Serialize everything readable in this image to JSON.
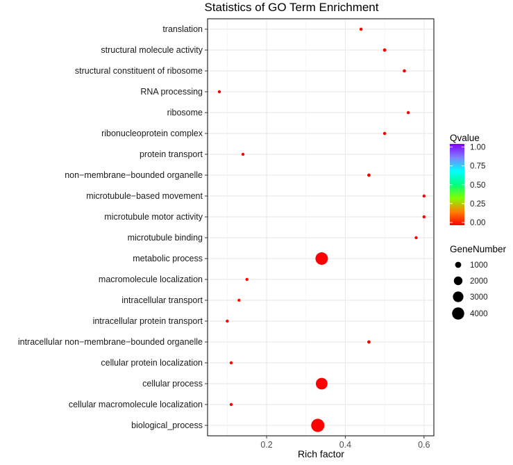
{
  "chart_data": {
    "type": "scatter",
    "title": "Statistics of GO Term Enrichment",
    "xlabel": "Rich factor",
    "ylabel": "",
    "xlim": [
      0.05,
      0.625
    ],
    "xticks": [
      0.2,
      0.4,
      0.6
    ],
    "xtick_labels": [
      "0.2",
      "0.4",
      "0.6"
    ],
    "grid": true,
    "categories": [
      "translation",
      "structural molecule activity",
      "structural constituent of ribosome",
      "RNA processing",
      "ribosome",
      "ribonucleoprotein complex",
      "protein transport",
      "non−membrane−bounded organelle",
      "microtubule−based movement",
      "microtubule motor activity",
      "microtubule binding",
      "metabolic process",
      "macromolecule localization",
      "intracellular transport",
      "intracellular protein transport",
      "intracellular non−membrane−bounded organelle",
      "cellular protein localization",
      "cellular process",
      "cellular macromolecule localization",
      "biological_process"
    ],
    "rich_factor": [
      0.44,
      0.5,
      0.55,
      0.08,
      0.56,
      0.5,
      0.14,
      0.46,
      0.6,
      0.6,
      0.58,
      0.34,
      0.15,
      0.13,
      0.1,
      0.46,
      0.11,
      0.34,
      0.11,
      0.33
    ],
    "gene_number": [
      270,
      300,
      280,
      90,
      260,
      270,
      130,
      300,
      100,
      100,
      130,
      4200,
      140,
      130,
      110,
      300,
      120,
      3700,
      110,
      4700
    ],
    "qvalue": [
      0.0,
      0.0,
      0.0,
      0.0,
      0.0,
      0.0,
      0.0,
      0.0,
      0.0,
      0.0,
      0.0,
      0.0,
      0.0,
      0.0,
      0.0,
      0.0,
      0.0,
      0.0,
      0.0,
      0.0
    ],
    "legend_position": "right",
    "color_legend": {
      "title": "Qvalue",
      "ticks": [
        1.0,
        0.75,
        0.5,
        0.25,
        0.0
      ],
      "tick_labels": [
        "1.00",
        "0.75",
        "0.50",
        "0.25",
        "0.00"
      ],
      "colors": [
        "#ff0000",
        "#ff8000",
        "#80ff00",
        "#00ff80",
        "#00ffff",
        "#8080ff",
        "#8000ff"
      ]
    },
    "size_legend": {
      "title": "GeneNumber",
      "values": [
        1000,
        2000,
        3000,
        4000
      ],
      "labels": [
        "1000",
        "2000",
        "3000",
        "4000"
      ]
    },
    "point_color": "#ff0000"
  }
}
